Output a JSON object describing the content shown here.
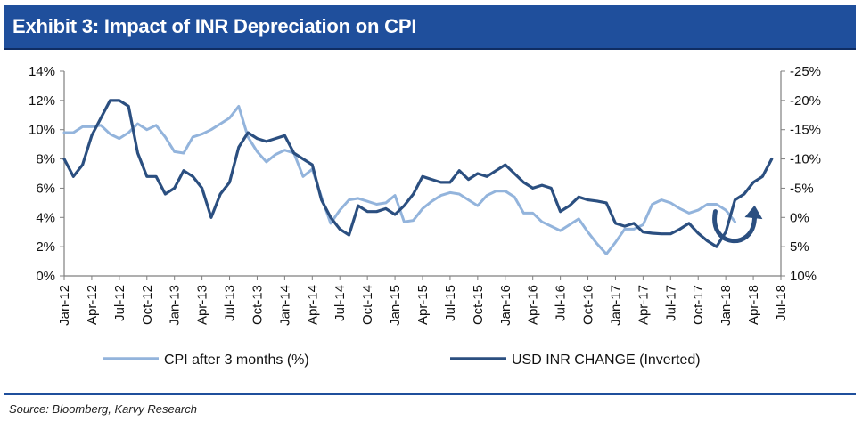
{
  "header": {
    "title": "Exhibit 3: Impact of INR Depreciation on CPI"
  },
  "footer": {
    "source": "Source: Bloomberg, Karvy Research"
  },
  "colors": {
    "title_bg": "#1f4f9c",
    "cpi": "#93b4dc",
    "usd": "#2b4f80",
    "axis": "#7f7f7f"
  },
  "chart_data": {
    "type": "line",
    "title": "",
    "x_tick_labels": [
      "Jan-12",
      "Apr-12",
      "Jul-12",
      "Oct-12",
      "Jan-13",
      "Apr-13",
      "Jul-13",
      "Oct-13",
      "Jan-14",
      "Apr-14",
      "Jul-14",
      "Oct-14",
      "Jan-15",
      "Apr-15",
      "Jul-15",
      "Oct-15",
      "Jan-16",
      "Apr-16",
      "Jul-16",
      "Oct-16",
      "Jan-17",
      "Apr-17",
      "Jul-17",
      "Oct-17",
      "Jan-18",
      "Apr-18",
      "Jul-18"
    ],
    "y_left": {
      "ticks": [
        "14%",
        "12%",
        "10%",
        "8%",
        "6%",
        "4%",
        "2%",
        "0%"
      ],
      "range": [
        0,
        14
      ]
    },
    "y_right": {
      "ticks": [
        "-25%",
        "-20%",
        "-15%",
        "-10%",
        "-5%",
        "0%",
        "5%",
        "10%"
      ],
      "range": [
        -25,
        10
      ],
      "inverted": true
    },
    "grid": false,
    "legend_position": "bottom",
    "series": [
      {
        "name": "CPI after 3 months (%)",
        "axis": "left",
        "start": "Jan-12",
        "values": [
          9.8,
          9.8,
          10.2,
          10.2,
          10.3,
          9.7,
          9.4,
          9.8,
          10.4,
          10.0,
          10.3,
          9.5,
          8.5,
          8.4,
          9.5,
          9.7,
          10.0,
          10.4,
          10.8,
          11.6,
          9.5,
          8.5,
          7.8,
          8.3,
          8.6,
          8.4,
          6.8,
          7.3,
          5.4,
          3.6,
          4.5,
          5.2,
          5.3,
          5.1,
          4.9,
          5.0,
          5.5,
          3.7,
          3.8,
          4.6,
          5.1,
          5.5,
          5.7,
          5.6,
          5.2,
          4.8,
          5.5,
          5.8,
          5.8,
          5.4,
          4.3,
          4.3,
          3.7,
          3.4,
          3.1,
          3.5,
          3.9,
          3.0,
          2.2,
          1.5,
          2.3,
          3.2,
          3.2,
          3.5,
          4.9,
          5.2,
          5.0,
          4.6,
          4.3,
          4.5,
          4.9,
          4.9,
          4.5,
          3.7
        ],
        "color": "#93b4dc"
      },
      {
        "name": "USD INR CHANGE (Inverted)",
        "axis": "right",
        "start": "Jan-12",
        "values": [
          -10,
          -7,
          -9,
          -14,
          -17,
          -20,
          -20,
          -19,
          -11,
          -7,
          -7,
          -4,
          -5,
          -8,
          -7,
          -5,
          0,
          -4,
          -6,
          -12,
          -14.5,
          -13.5,
          -13,
          -13.5,
          -14,
          -11,
          -10,
          -9,
          -3,
          0,
          2,
          3,
          -2,
          -1,
          -1,
          -1.5,
          -0.5,
          -2,
          -4,
          -7,
          -6.5,
          -6,
          -6,
          -8,
          -6.5,
          -7.5,
          -7,
          -8,
          -9,
          -7.5,
          -6,
          -5,
          -5.5,
          -5,
          -1,
          -2,
          -3.5,
          -3,
          -2.8,
          -2.5,
          1,
          1.5,
          1,
          2.5,
          2.7,
          2.8,
          2.8,
          2,
          1,
          2.7,
          4,
          5,
          2.5,
          -3,
          -4,
          -6,
          -7,
          -10
        ]
      }
    ],
    "annotation": "circular arrow"
  }
}
